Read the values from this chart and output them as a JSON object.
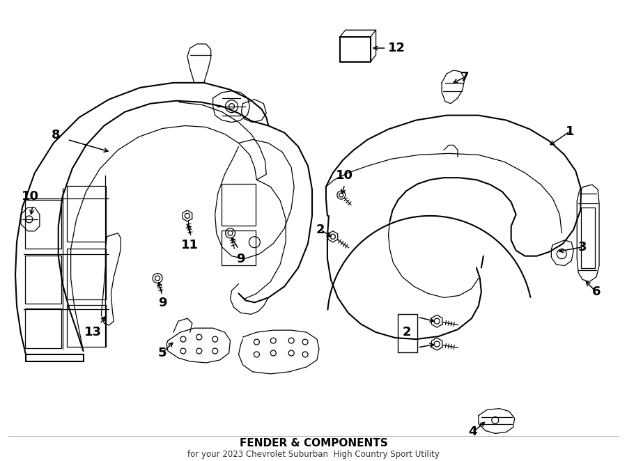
{
  "title": "FENDER & COMPONENTS",
  "subtitle": "for your 2023 Chevrolet Suburban  High Country Sport Utility",
  "bg_color": "#ffffff",
  "line_color": "#000000",
  "figsize": [
    9.0,
    6.62
  ],
  "dpi": 100,
  "label_fontsize": 13,
  "label_color": "#000000",
  "lw_main": 1.5,
  "lw_thin": 0.9,
  "lw_label": 1.1
}
